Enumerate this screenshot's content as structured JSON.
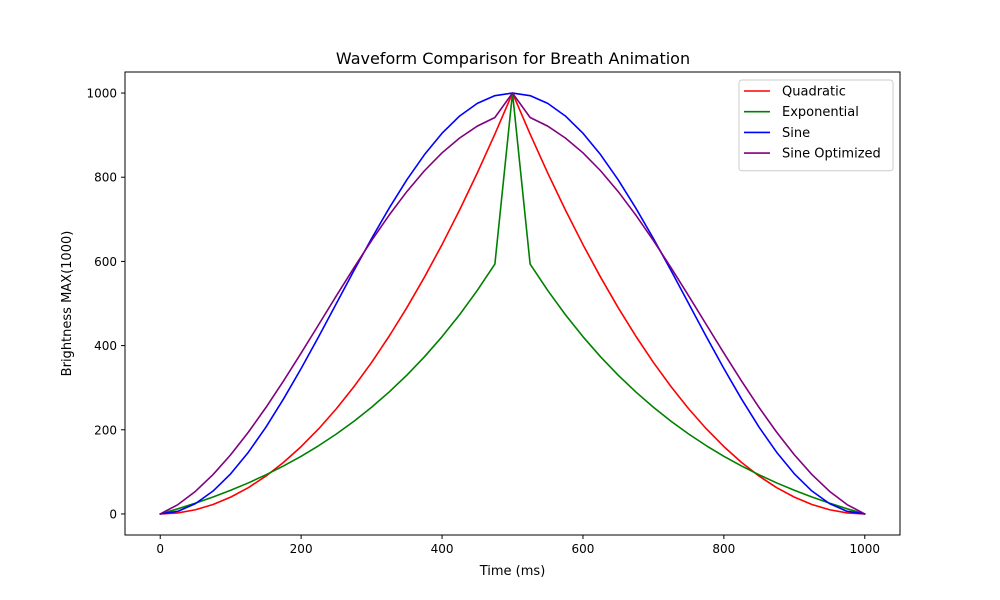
{
  "chart_data": {
    "type": "line",
    "title": "Waveform Comparison for Breath Animation",
    "xlabel": "Time (ms)",
    "ylabel": "Brightness MAX(1000)",
    "xlim": [
      -50,
      1050
    ],
    "ylim": [
      -50,
      1050
    ],
    "xticks": [
      0,
      200,
      400,
      600,
      800,
      1000
    ],
    "yticks": [
      0,
      200,
      400,
      600,
      800,
      1000
    ],
    "grid": false,
    "legend_position": "top-right",
    "x": [
      0,
      25,
      50,
      75,
      100,
      125,
      150,
      175,
      200,
      225,
      250,
      275,
      300,
      325,
      350,
      375,
      400,
      425,
      450,
      475,
      500,
      525,
      550,
      575,
      600,
      625,
      650,
      675,
      700,
      725,
      750,
      775,
      800,
      825,
      850,
      875,
      900,
      925,
      950,
      975,
      1000
    ],
    "series": [
      {
        "name": "Quadratic",
        "color": "#ff0000",
        "values": [
          0,
          2.5,
          10,
          22.5,
          40,
          62.5,
          90,
          122.5,
          160,
          202.5,
          250,
          302.5,
          360,
          422.5,
          490,
          562.5,
          640,
          722.5,
          810,
          902.5,
          1000,
          902.5,
          810,
          722.5,
          640,
          562.5,
          490,
          422.5,
          360,
          302.5,
          250,
          202.5,
          160,
          122.5,
          90,
          62.5,
          40,
          22.5,
          10,
          2.5,
          0
        ]
      },
      {
        "name": "Exponential",
        "color": "#008000",
        "values": [
          0,
          12.2,
          25.6,
          40.2,
          56.2,
          73.7,
          93,
          114,
          137,
          162.3,
          190,
          220.3,
          253.5,
          289.9,
          329.7,
          373.4,
          421.2,
          473.6,
          531,
          593.8,
          1000,
          593.8,
          531,
          473.6,
          421.2,
          373.4,
          329.7,
          289.9,
          253.5,
          220.3,
          190,
          162.3,
          137,
          114,
          93,
          73.7,
          56.2,
          40.2,
          25.6,
          12.2,
          0
        ]
      },
      {
        "name": "Sine",
        "color": "#0000ff",
        "values": [
          0,
          6.2,
          24.5,
          54.5,
          95.5,
          146.4,
          206.1,
          273.2,
          345.5,
          421.7,
          500,
          578.3,
          654.5,
          726.8,
          793.9,
          853.6,
          904.5,
          945.5,
          975.5,
          993.8,
          1000,
          993.8,
          975.5,
          945.5,
          904.5,
          853.6,
          793.9,
          726.8,
          654.5,
          578.3,
          500,
          421.7,
          345.5,
          273.2,
          206.1,
          146.4,
          95.5,
          54.5,
          24.5,
          6.2,
          0
        ]
      },
      {
        "name": "Sine Optimized",
        "color": "#800080",
        "values": [
          0,
          22.1,
          53.7,
          93.6,
          140.6,
          194.1,
          252.9,
          316.1,
          382.2,
          450.1,
          518.2,
          585.2,
          649.6,
          710.2,
          765.9,
          815.4,
          858,
          893.2,
          921.4,
          941.9,
          1000,
          941.9,
          921.4,
          893.2,
          858,
          815.4,
          765.9,
          710.2,
          649.6,
          585.2,
          518.2,
          450.1,
          382.2,
          316.1,
          252.9,
          194.1,
          140.6,
          93.6,
          53.7,
          22.1,
          0
        ]
      }
    ]
  }
}
